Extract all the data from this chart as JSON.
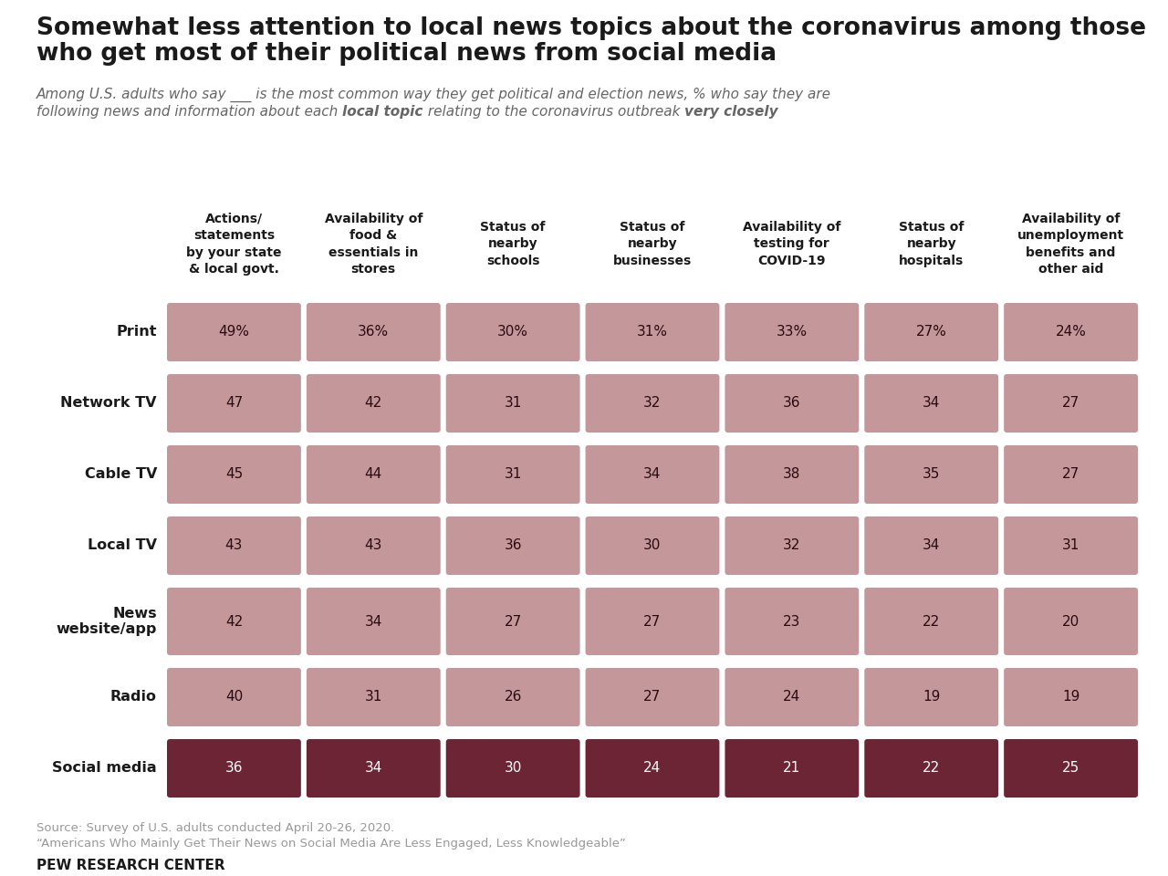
{
  "title_line1": "Somewhat less attention to local news topics about the coronavirus among those",
  "title_line2": "who get most of their political news from social media",
  "subtitle_normal1": "Among U.S. adults who say ___ is the most common way they get political and election news, % who say they are",
  "subtitle_normal2a": "following news and information about each ",
  "subtitle_bold2a": "local topic",
  "subtitle_normal2b": " relating to the coronavirus outbreak ",
  "subtitle_bold2b": "very closely",
  "source_line1": "Source: Survey of U.S. adults conducted April 20-26, 2020.",
  "source_line2": "“Americans Who Mainly Get Their News on Social Media Are Less Engaged, Less Knowledgeable”",
  "source_org": "PEW RESEARCH CENTER",
  "columns": [
    "Actions/\nstatements\nby your state\n& local govt.",
    "Availability of\nfood &\nessentials in\nstores",
    "Status of\nnearby\nschools",
    "Status of\nnearby\nbusinesses",
    "Availability of\ntesting for\nCOVID-19",
    "Status of\nnearby\nhospitals",
    "Availability of\nunemployment\nbenefits and\nother aid"
  ],
  "rows": [
    "Print",
    "Network TV",
    "Cable TV",
    "Local TV",
    "News\nwebsite/app",
    "Radio",
    "Social media"
  ],
  "values": [
    [
      49,
      36,
      30,
      31,
      33,
      27,
      24
    ],
    [
      47,
      42,
      31,
      32,
      36,
      34,
      27
    ],
    [
      45,
      44,
      31,
      34,
      38,
      35,
      27
    ],
    [
      43,
      43,
      36,
      30,
      32,
      34,
      31
    ],
    [
      42,
      34,
      27,
      27,
      23,
      22,
      20
    ],
    [
      40,
      31,
      26,
      27,
      24,
      19,
      19
    ],
    [
      36,
      34,
      30,
      24,
      21,
      22,
      25
    ]
  ],
  "social_media_row": 6,
  "light_color": "#c4979b",
  "dark_color": "#6b2535",
  "background_color": "#ffffff",
  "cell_text_color_light": "#2a0a10",
  "cell_text_color_dark": "#ffffff",
  "title_color": "#1a1a1a",
  "subtitle_color": "#666666",
  "source_color": "#999999",
  "row_label_color": "#1a1a1a",
  "col_header_color": "#1a1a1a"
}
